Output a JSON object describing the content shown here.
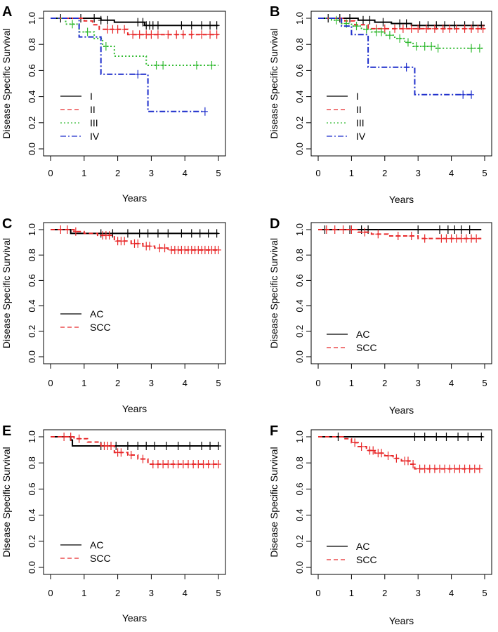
{
  "chart_data": [
    {
      "panel": "A",
      "type": "line",
      "xlabel": "Years",
      "ylabel": "Disease Specific Survival",
      "xlim": [
        0,
        5
      ],
      "ylim": [
        0,
        1
      ],
      "xticks": [
        "0",
        "1",
        "2",
        "3",
        "4",
        "5"
      ],
      "yticks": [
        "0.0",
        "0.2",
        "0.4",
        "0.6",
        "0.8",
        "1.0"
      ],
      "legend_position": "bottom-left",
      "series": [
        {
          "name": "I",
          "color": "#000000",
          "dash": "solid",
          "x": [
            0,
            1.5,
            1.9,
            2.8,
            5.0
          ],
          "y": [
            1.0,
            0.985,
            0.97,
            0.945,
            0.945
          ],
          "censor": [
            0.3,
            0.9,
            1.3,
            1.5,
            1.7,
            2.6,
            2.75,
            2.85,
            2.95,
            3.05,
            3.2,
            3.9,
            4.2,
            4.5,
            4.75,
            4.95
          ]
        },
        {
          "name": "II",
          "color": "#e8292a",
          "dash": "dashed",
          "x": [
            0,
            1.0,
            1.25,
            1.45,
            2.3,
            5.0
          ],
          "y": [
            1.0,
            0.98,
            0.95,
            0.915,
            0.875,
            0.875
          ],
          "censor": [
            1.7,
            1.85,
            2.0,
            2.2,
            2.45,
            2.65,
            2.85,
            3.0,
            3.2,
            3.5,
            3.75,
            3.95,
            4.2,
            4.5,
            4.75,
            4.95
          ]
        },
        {
          "name": "III",
          "color": "#33bb33",
          "dash": "dotted",
          "x": [
            0,
            0.45,
            0.85,
            1.3,
            1.55,
            1.9,
            2.85,
            5.0
          ],
          "y": [
            1.0,
            0.955,
            0.895,
            0.845,
            0.785,
            0.71,
            0.64,
            0.64
          ],
          "censor": [
            0.65,
            1.1,
            1.65,
            3.15,
            3.35,
            4.35,
            4.8
          ]
        },
        {
          "name": "IV",
          "color": "#1f2fcc",
          "dash": "dashdot",
          "x": [
            0,
            0.85,
            1.5,
            2.9,
            4.6
          ],
          "y": [
            1.0,
            0.857,
            0.571,
            0.286,
            0.286
          ],
          "censor": [
            2.6,
            4.6
          ]
        }
      ]
    },
    {
      "panel": "B",
      "type": "line",
      "xlabel": "Years",
      "ylabel": "Disease Specific Survival",
      "xlim": [
        0,
        5
      ],
      "ylim": [
        0,
        1
      ],
      "xticks": [
        "0",
        "1",
        "2",
        "3",
        "4",
        "5"
      ],
      "yticks": [
        "0.0",
        "0.2",
        "0.4",
        "0.6",
        "0.8",
        "1.0"
      ],
      "legend_position": "bottom-left",
      "series": [
        {
          "name": "I",
          "color": "#000000",
          "dash": "solid",
          "x": [
            0,
            1.2,
            1.7,
            2.2,
            2.8,
            5.0
          ],
          "y": [
            1.0,
            0.985,
            0.97,
            0.96,
            0.945,
            0.945
          ],
          "censor": [
            0.3,
            0.65,
            0.95,
            1.35,
            1.55,
            1.95,
            2.45,
            2.65,
            3.05,
            3.3,
            3.55,
            3.8,
            4.1,
            4.4,
            4.65,
            4.9
          ]
        },
        {
          "name": "II",
          "color": "#e8292a",
          "dash": "dashed",
          "x": [
            0,
            0.8,
            1.1,
            1.5,
            5.0
          ],
          "y": [
            1.0,
            0.98,
            0.95,
            0.92,
            0.92
          ],
          "censor": [
            1.75,
            2.0,
            2.3,
            2.55,
            2.8,
            3.0,
            3.25,
            3.5,
            3.75,
            3.95,
            4.15,
            4.4,
            4.6,
            4.8,
            4.95
          ]
        },
        {
          "name": "III",
          "color": "#33bb33",
          "dash": "dotted",
          "x": [
            0,
            0.4,
            0.7,
            1.0,
            1.3,
            1.6,
            2.0,
            2.3,
            2.6,
            2.85,
            3.5,
            5.0
          ],
          "y": [
            1.0,
            0.985,
            0.96,
            0.94,
            0.915,
            0.895,
            0.87,
            0.845,
            0.815,
            0.785,
            0.77,
            0.77
          ],
          "censor": [
            0.55,
            0.85,
            1.15,
            1.45,
            1.75,
            1.9,
            2.15,
            2.45,
            2.7,
            2.95,
            3.2,
            3.4,
            3.6,
            4.6,
            4.85
          ]
        },
        {
          "name": "IV",
          "color": "#1f2fcc",
          "dash": "dashdot",
          "x": [
            0,
            0.7,
            1.0,
            1.5,
            2.9,
            4.6
          ],
          "y": [
            1.0,
            0.94,
            0.875,
            0.625,
            0.415,
            0.415
          ],
          "censor": [
            2.65,
            4.35,
            4.6
          ]
        }
      ]
    },
    {
      "panel": "C",
      "type": "line",
      "xlabel": "Years",
      "ylabel": "Disease Specific Survival",
      "xlim": [
        0,
        5
      ],
      "ylim": [
        0,
        1
      ],
      "xticks": [
        "0",
        "1",
        "2",
        "3",
        "4",
        "5"
      ],
      "yticks": [
        "0.0",
        "0.2",
        "0.4",
        "0.6",
        "0.8",
        "1.0"
      ],
      "legend_position": "bottom-left",
      "series": [
        {
          "name": "AC",
          "color": "#000000",
          "dash": "solid",
          "x": [
            0,
            0.6,
            5.0
          ],
          "y": [
            1.0,
            0.97,
            0.97
          ],
          "censor": [
            1.5,
            1.85,
            2.3,
            2.65,
            2.9,
            3.2,
            3.5,
            3.9,
            4.2,
            4.45,
            4.7,
            4.95
          ]
        },
        {
          "name": "SCC",
          "color": "#e8292a",
          "dash": "dashed",
          "x": [
            0,
            0.7,
            1.0,
            1.4,
            1.9,
            2.4,
            2.75,
            3.1,
            3.5,
            5.0
          ],
          "y": [
            1.0,
            0.985,
            0.97,
            0.955,
            0.91,
            0.89,
            0.87,
            0.855,
            0.84,
            0.84
          ],
          "censor": [
            0.3,
            0.5,
            0.75,
            1.55,
            1.65,
            1.75,
            2.0,
            2.1,
            2.2,
            2.5,
            2.6,
            2.85,
            2.95,
            3.25,
            3.4,
            3.6,
            3.7,
            3.8,
            3.9,
            4.0,
            4.1,
            4.2,
            4.3,
            4.4,
            4.5,
            4.6,
            4.7,
            4.8,
            4.9,
            5.0
          ]
        }
      ]
    },
    {
      "panel": "D",
      "type": "line",
      "xlabel": "Years",
      "ylabel": "Disease Specific Survival",
      "xlim": [
        0,
        5
      ],
      "ylim": [
        0,
        1
      ],
      "xticks": [
        "0",
        "1",
        "2",
        "3",
        "4",
        "5"
      ],
      "yticks": [
        "0.0",
        "0.2",
        "0.4",
        "0.6",
        "0.8",
        "1.0"
      ],
      "legend_position": "bottom-left",
      "series": [
        {
          "name": "AC",
          "color": "#000000",
          "dash": "solid",
          "x": [
            0,
            4.9
          ],
          "y": [
            1.0,
            1.0
          ],
          "censor": [
            0.2,
            0.95,
            1.3,
            1.5,
            3.0,
            3.65,
            3.9,
            4.1,
            4.3,
            4.55
          ]
        },
        {
          "name": "SCC",
          "color": "#e8292a",
          "dash": "dashed",
          "x": [
            0,
            1.2,
            1.6,
            2.1,
            3.0,
            4.9
          ],
          "y": [
            1.0,
            0.98,
            0.965,
            0.95,
            0.93,
            0.93
          ],
          "censor": [
            0.25,
            0.5,
            0.75,
            1.0,
            1.4,
            1.8,
            2.4,
            2.8,
            3.2,
            3.7,
            3.85,
            4.0,
            4.15,
            4.3,
            4.45,
            4.6,
            4.75
          ]
        }
      ]
    },
    {
      "panel": "E",
      "type": "line",
      "xlabel": "Years",
      "ylabel": "Disease Specific Survival",
      "xlim": [
        0,
        5
      ],
      "ylim": [
        0,
        1
      ],
      "xticks": [
        "0",
        "1",
        "2",
        "3",
        "4",
        "5"
      ],
      "yticks": [
        "0.0",
        "0.2",
        "0.4",
        "0.6",
        "0.8",
        "1.0"
      ],
      "legend_position": "bottom-left",
      "series": [
        {
          "name": "AC",
          "color": "#000000",
          "dash": "solid",
          "x": [
            0,
            0.6,
            0.65,
            5.0
          ],
          "y": [
            1.0,
            0.975,
            0.93,
            0.93
          ],
          "censor": [
            1.5,
            1.95,
            2.3,
            2.6,
            2.85,
            3.1,
            3.45,
            3.8,
            4.15,
            4.5,
            4.75,
            5.0
          ]
        },
        {
          "name": "SCC",
          "color": "#e8292a",
          "dash": "dashed",
          "x": [
            0,
            0.7,
            1.1,
            1.5,
            1.9,
            2.3,
            2.6,
            2.9,
            5.0
          ],
          "y": [
            1.0,
            0.985,
            0.96,
            0.93,
            0.88,
            0.86,
            0.83,
            0.79,
            0.79
          ],
          "censor": [
            0.4,
            0.6,
            0.85,
            1.6,
            1.7,
            1.8,
            2.0,
            2.1,
            2.4,
            2.75,
            3.05,
            3.2,
            3.35,
            3.5,
            3.65,
            3.8,
            3.95,
            4.1,
            4.25,
            4.4,
            4.55,
            4.7,
            4.85,
            5.0
          ]
        }
      ]
    },
    {
      "panel": "F",
      "type": "line",
      "xlabel": "Years",
      "ylabel": "Disease Specific Survival",
      "xlim": [
        0,
        5
      ],
      "ylim": [
        0,
        1
      ],
      "xticks": [
        "0",
        "1",
        "2",
        "3",
        "4",
        "5"
      ],
      "yticks": [
        "0.0",
        "0.2",
        "0.4",
        "0.6",
        "0.8",
        "1.0"
      ],
      "legend_position": "bottom-left",
      "series": [
        {
          "name": "AC",
          "color": "#000000",
          "dash": "solid",
          "x": [
            0,
            4.95
          ],
          "y": [
            1.0,
            1.0
          ],
          "censor": [
            0.6,
            2.9,
            3.2,
            3.55,
            3.85,
            4.2,
            4.5,
            4.9
          ]
        },
        {
          "name": "SCC",
          "color": "#e8292a",
          "dash": "dashed",
          "x": [
            0,
            0.75,
            1.0,
            1.2,
            1.45,
            1.7,
            2.0,
            2.25,
            2.5,
            2.75,
            2.9,
            4.95
          ],
          "y": [
            1.0,
            0.985,
            0.955,
            0.925,
            0.895,
            0.875,
            0.855,
            0.835,
            0.815,
            0.79,
            0.755,
            0.755
          ],
          "censor": [
            1.1,
            1.3,
            1.55,
            1.65,
            1.8,
            1.9,
            2.1,
            2.35,
            2.6,
            2.7,
            2.85,
            3.05,
            3.2,
            3.35,
            3.5,
            3.65,
            3.8,
            3.95,
            4.1,
            4.25,
            4.4,
            4.55,
            4.7,
            4.85
          ]
        }
      ]
    }
  ]
}
